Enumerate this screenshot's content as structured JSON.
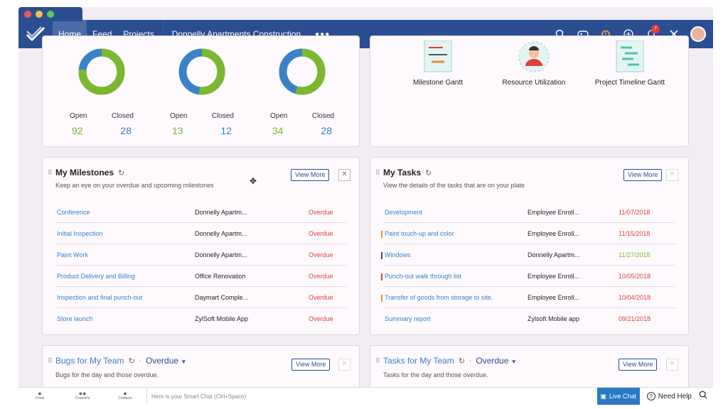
{
  "colors": {
    "nav": "#2a4e91",
    "accent": "#3a82c7",
    "open_green": "#7cb82f",
    "overdue_red": "#e0413a"
  },
  "nav": {
    "tabs": [
      {
        "label": "Home"
      },
      {
        "label": "Feed"
      },
      {
        "label": "Projects"
      }
    ],
    "project": "Donnelly Apartments Construction",
    "notification_count": "7"
  },
  "stats": [
    {
      "open_label": "Open",
      "closed_label": "Closed",
      "open": "92",
      "closed": "28",
      "open_value": 92,
      "closed_value": 28
    },
    {
      "open_label": "Open",
      "closed_label": "Closed",
      "open": "13",
      "closed": "12",
      "open_value": 13,
      "closed_value": 12
    },
    {
      "open_label": "Open",
      "closed_label": "Closed",
      "open": "34",
      "closed": "28",
      "open_value": 34,
      "closed_value": 28
    }
  ],
  "reports": [
    {
      "label": "Milestone Gantt",
      "icon": "milestone-gantt-icon"
    },
    {
      "label": "Resource Utilization",
      "icon": "resource-utilization-icon"
    },
    {
      "label": "Project Timeline Gantt",
      "icon": "timeline-gantt-icon"
    }
  ],
  "milestones": {
    "title": "My Milestones",
    "subtitle": "Keep an eye on your overdue and upcoming milestones",
    "view_more": "View More",
    "rows": [
      {
        "name": "Conference",
        "project": "Donnelly Apartm...",
        "status": "Overdue"
      },
      {
        "name": "Initial Inspection",
        "project": "Donnelly Apartm...",
        "status": "Overdue"
      },
      {
        "name": "Paint Work",
        "project": "Donnelly Apartm...",
        "status": "Overdue"
      },
      {
        "name": "Product Delivery and Billing",
        "project": "Office Renovation",
        "status": "Overdue"
      },
      {
        "name": "Inspection and final punch-out",
        "project": "Daymart Comple...",
        "status": "Overdue"
      },
      {
        "name": "Store launch",
        "project": "ZylSoft Mobile App",
        "status": "Overdue"
      }
    ]
  },
  "tasks": {
    "title": "My Tasks",
    "subtitle": "View the details of the tasks that are on your plate",
    "view_more": "View More",
    "rows": [
      {
        "name": "Development",
        "project": "Employee Enroll...",
        "date": "11/07/2018",
        "date_color": "#e0413a",
        "mark": ""
      },
      {
        "name": "Paint touch-up and color",
        "project": "Employee Enroll...",
        "date": "11/15/2018",
        "date_color": "#e0413a",
        "mark": "#f08a3a"
      },
      {
        "name": "Windows",
        "project": "Donnelly Apartm...",
        "date": "11/27/2018",
        "date_color": "#7cb82f",
        "mark": "#2a4e91"
      },
      {
        "name": "Punch-out walk through list",
        "project": "Employee Enroll...",
        "date": "10/05/2018",
        "date_color": "#e0413a",
        "mark": "#e0413a"
      },
      {
        "name": "Transfer of goods from storage to site.",
        "project": "Employee Enroll...",
        "date": "10/04/2018",
        "date_color": "#e0413a",
        "mark": "#f08a3a"
      },
      {
        "name": "Summary report",
        "project": "Zylsoft Mobile app",
        "date": "09/21/2018",
        "date_color": "#e0413a",
        "mark": ""
      }
    ]
  },
  "bugs": {
    "title": "Bugs for My Team",
    "filter": "Overdue",
    "subtitle": "Bugs for the day and those overdue.",
    "view_more": "View More"
  },
  "team_tasks": {
    "title": "Tasks for My Team",
    "filter": "Overdue",
    "subtitle": "Tasks for the day and those overdue.",
    "view_more": "View More"
  },
  "bottom": {
    "items": [
      {
        "label": "Chats"
      },
      {
        "label": "Channels"
      },
      {
        "label": "Contacts"
      }
    ],
    "smart_chat_placeholder": "Here is your Smart Chat (Ctrl+Space)",
    "live_chat": "Live Chat",
    "need_help": "Need Help"
  }
}
